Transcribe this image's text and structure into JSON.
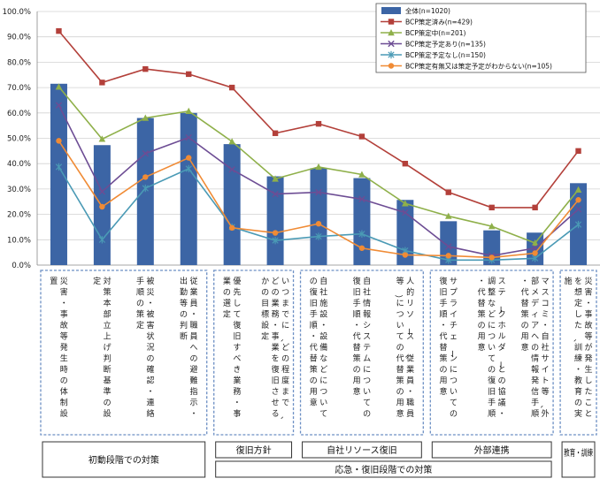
{
  "chart_data": {
    "type": "bar+line",
    "title": "",
    "xlabel": "",
    "ylabel": "",
    "ylim": [
      0,
      100
    ],
    "ytick_labels": [
      "0.0%",
      "10.0%",
      "20.0%",
      "30.0%",
      "40.0%",
      "50.0%",
      "60.0%",
      "70.0%",
      "80.0%",
      "90.0%",
      "100.0%"
    ],
    "categories": [
      "災害・事故等発生時の体制設置",
      "対策本部立上げ判断基準の設定",
      "被災・被害状況の確認・連絡手順の策定",
      "従業員・職員への避難指示・出勤等の判断",
      "優先して復旧すべき業務・事業の選定",
      "いつまでに、どの程度まで、どの業務・事業を復旧させるかの目標設定",
      "自社施設・設備などについての復旧手順・代替策の用意",
      "自社情報システムについての復旧手順・代替策の用意",
      "人的リソース（従業員・職員等）についての代替策の用意",
      "サプライチェーンについての復旧手順・代替策の用意",
      "ステークホルダーとの協議・調整などについての復旧手順・代替策の用意",
      "マスコミ・自社サイト等、外部メディアへの情報発信手順・代替策の用意",
      "災害・事故等が発生したことを想定した、訓練・教育の実施"
    ],
    "series": [
      {
        "name": "全体(n=1020)",
        "type": "bar",
        "color": "#3c65a5",
        "values": [
          71.5,
          47.3,
          58.0,
          60.0,
          47.7,
          35.0,
          38.2,
          34.3,
          25.7,
          17.3,
          13.7,
          12.8,
          32.3
        ]
      },
      {
        "name": "BCP策定済み(n=429)",
        "type": "line",
        "color": "#b3403a",
        "marker": "square",
        "values": [
          92.3,
          72.0,
          77.3,
          75.3,
          70.0,
          52.0,
          55.7,
          50.7,
          40.0,
          28.7,
          22.7,
          22.7,
          45.0
        ]
      },
      {
        "name": "BCP策定中(n=201)",
        "type": "line",
        "color": "#8fb04a",
        "marker": "triangle",
        "values": [
          70.3,
          49.7,
          58.0,
          60.7,
          48.7,
          34.0,
          38.7,
          35.7,
          24.3,
          19.3,
          15.3,
          8.7,
          29.7
        ]
      },
      {
        "name": "BCP策定予定あり(n=135)",
        "type": "line",
        "color": "#6d4d94",
        "marker": "x",
        "values": [
          63.0,
          29.0,
          44.0,
          50.3,
          37.7,
          28.0,
          28.7,
          26.0,
          20.7,
          7.3,
          3.7,
          6.7,
          22.0
        ]
      },
      {
        "name": "BCP策定予定なし(n=150)",
        "type": "line",
        "color": "#4a9ab5",
        "marker": "star",
        "values": [
          38.7,
          10.0,
          30.3,
          38.0,
          15.0,
          9.7,
          11.3,
          12.3,
          5.7,
          2.0,
          2.0,
          2.7,
          16.0
        ]
      },
      {
        "name": "BCP策定有無又は策定予定がわからない(n=105)",
        "type": "line",
        "color": "#f08b35",
        "marker": "circle",
        "values": [
          49.0,
          23.0,
          34.7,
          42.3,
          14.7,
          12.7,
          16.3,
          6.7,
          4.0,
          3.7,
          3.0,
          4.7,
          25.7
        ]
      }
    ],
    "groups": [
      {
        "label": "初動段階での対策",
        "start": 0,
        "end": 3
      },
      {
        "label": "復旧方針",
        "start": 4,
        "end": 5
      },
      {
        "label": "自社リソース復旧",
        "start": 6,
        "end": 8
      },
      {
        "label": "外部連携",
        "start": 9,
        "end": 11
      },
      {
        "label": "教育・訓練",
        "start": 12,
        "end": 12
      }
    ],
    "supergroups": [
      {
        "label": "応急・復旧段階での対策",
        "start": 4,
        "end": 11
      }
    ],
    "legend_position": "top-right"
  }
}
